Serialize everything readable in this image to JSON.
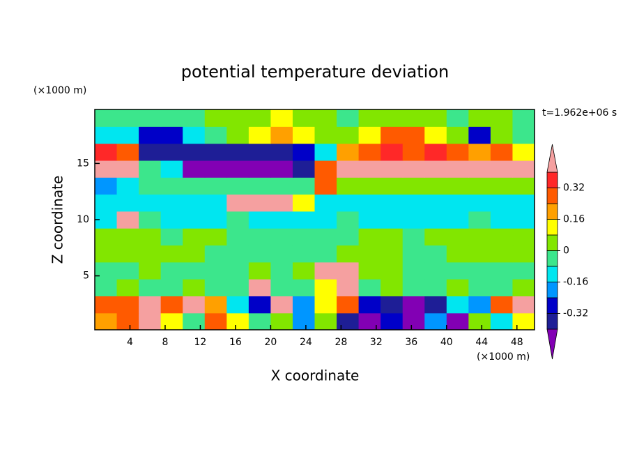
{
  "chart_data": {
    "type": "contour",
    "title": "potential temperature deviation",
    "x_label": "X coordinate",
    "y_label": "Z coordinate",
    "x_unit_label": "(×1000 m)",
    "y_unit_label": "(×1000 m)",
    "time_label": "t=1.962e+06 s",
    "xlim": [
      0,
      50
    ],
    "ylim": [
      0.2,
      19.8
    ],
    "xticks": [
      4,
      8,
      12,
      16,
      20,
      24,
      28,
      32,
      36,
      40,
      44,
      48
    ],
    "yticks": [
      5,
      10,
      15
    ],
    "x": [
      1.25,
      3.75,
      6.25,
      8.75,
      11.25,
      13.75,
      16.25,
      18.75,
      21.25,
      23.75,
      26.25,
      28.75,
      31.25,
      33.75,
      36.25,
      38.75,
      41.25,
      43.75,
      46.25,
      48.75
    ],
    "y": [
      0.95,
      2.46,
      3.97,
      5.48,
      6.98,
      8.49,
      10,
      11.51,
      13.02,
      14.52,
      16.03,
      17.54,
      19.05
    ],
    "z": [
      [
        0.2,
        0.3,
        0.45,
        0.1,
        -0.05,
        0.25,
        0.1,
        -0.05,
        0.05,
        -0.2,
        0.05,
        -0.35,
        -0.45,
        -0.3,
        -0.45,
        -0.2,
        -0.45,
        0.05,
        -0.1,
        0.1
      ],
      [
        0.3,
        0.25,
        0.45,
        0.3,
        0.45,
        0.2,
        -0.1,
        -0.3,
        0.4,
        -0.2,
        0.1,
        0.3,
        -0.3,
        -0.4,
        -0.45,
        -0.35,
        -0.1,
        -0.2,
        0.3,
        0.45
      ],
      [
        -0.05,
        0.04,
        -0.05,
        -0.03,
        0.04,
        -0.05,
        -0.05,
        0.45,
        -0.04,
        -0.05,
        0.1,
        0.4,
        -0.05,
        0.04,
        -0.03,
        -0.05,
        0.04,
        -0.05,
        -0.04,
        0.04
      ],
      [
        -0.05,
        -0.04,
        0.04,
        -0.05,
        -0.05,
        -0.04,
        -0.05,
        0.04,
        -0.05,
        0.05,
        0.45,
        0.45,
        0.04,
        0.04,
        -0.05,
        -0.04,
        -0.05,
        -0.05,
        -0.04,
        -0.05
      ],
      [
        0.04,
        0.04,
        0.05,
        0.04,
        0.04,
        -0.04,
        -0.05,
        -0.04,
        -0.05,
        -0.05,
        -0.04,
        0.04,
        0.05,
        0.04,
        -0.04,
        -0.05,
        0.04,
        0.05,
        0.04,
        0.04
      ],
      [
        0.04,
        0.05,
        0.04,
        -0.04,
        0.04,
        0.04,
        -0.05,
        -0.04,
        -0.05,
        -0.04,
        -0.05,
        -0.04,
        0.04,
        0.04,
        -0.05,
        0.04,
        0.05,
        0.04,
        0.04,
        0.05
      ],
      [
        -0.1,
        0.45,
        -0.05,
        -0.1,
        -0.12,
        -0.1,
        -0.05,
        -0.1,
        -0.12,
        -0.1,
        -0.12,
        -0.05,
        -0.1,
        -0.12,
        -0.1,
        -0.12,
        -0.1,
        -0.05,
        -0.1,
        -0.1
      ],
      [
        -0.12,
        -0.1,
        -0.12,
        -0.1,
        -0.12,
        -0.12,
        0.45,
        0.45,
        0.45,
        0.1,
        -0.12,
        -0.12,
        -0.1,
        -0.12,
        -0.12,
        -0.1,
        -0.12,
        -0.12,
        -0.1,
        -0.12
      ],
      [
        -0.2,
        -0.15,
        -0.05,
        -0.04,
        -0.05,
        -0.04,
        -0.05,
        -0.04,
        -0.05,
        -0.05,
        0.3,
        0.04,
        0.04,
        0.05,
        0.04,
        0.05,
        0.04,
        0.04,
        0.05,
        0.04
      ],
      [
        0.45,
        0.45,
        -0.05,
        -0.1,
        -0.45,
        -0.45,
        -0.45,
        -0.45,
        -0.45,
        -0.4,
        0.25,
        0.45,
        0.45,
        0.45,
        0.45,
        0.45,
        0.4,
        0.45,
        0.4,
        0.45
      ],
      [
        0.35,
        0.25,
        -0.35,
        -0.38,
        -0.4,
        -0.36,
        -0.38,
        -0.36,
        -0.35,
        -0.3,
        -0.1,
        0.2,
        0.3,
        0.36,
        0.3,
        0.36,
        0.25,
        0.2,
        0.3,
        0.1
      ],
      [
        -0.1,
        -0.15,
        -0.3,
        -0.28,
        -0.1,
        -0.05,
        0.05,
        0.15,
        0.2,
        0.15,
        0.05,
        0.04,
        0.1,
        0.25,
        0.28,
        0.15,
        0.04,
        -0.25,
        0.05,
        -0.04
      ],
      [
        -0.04,
        -0.04,
        -0.05,
        -0.04,
        -0.03,
        0.04,
        0.05,
        0.04,
        0.1,
        0.05,
        0.04,
        -0.04,
        0.04,
        0.05,
        0.04,
        0.04,
        -0.04,
        0.05,
        0.04,
        -0.04
      ]
    ],
    "levels": [
      -0.4,
      -0.32,
      -0.24,
      -0.16,
      -0.08,
      0,
      0.08,
      0.16,
      0.24,
      0.32,
      0.4
    ],
    "colors": [
      "#8200b4",
      "#1e1e96",
      "#0000c8",
      "#0096ff",
      "#00e6f0",
      "#3ce68c",
      "#82e600",
      "#ffff00",
      "#ffa000",
      "#ff5a00",
      "#ff2828",
      "#f5a0a0"
    ],
    "colorbar_ticks": [
      0.32,
      0.16,
      0,
      -0.16,
      -0.32
    ]
  }
}
